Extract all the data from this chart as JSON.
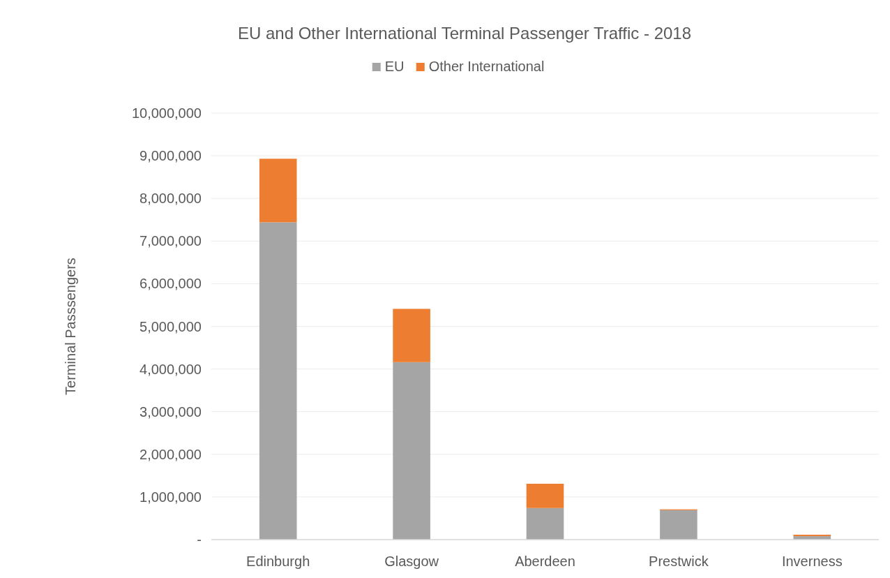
{
  "chart_data": {
    "type": "bar",
    "title": "EU and Other International Terminal Passenger Traffic - 2018",
    "ylabel": "Terminal Passsengers",
    "categories": [
      "Edinburgh",
      "Glasgow",
      "Aberdeen",
      "Prestwick",
      "Inverness"
    ],
    "stacked": true,
    "series": [
      {
        "name": "EU",
        "color": "#a5a5a5",
        "values": [
          7440000,
          4160000,
          740000,
          690000,
          80000
        ]
      },
      {
        "name": "Other International",
        "color": "#ed7d31",
        "values": [
          1490000,
          1250000,
          570000,
          20000,
          35000
        ]
      }
    ],
    "ylim": [
      0,
      10000000
    ],
    "yticks": [
      {
        "value": 0,
        "label": "-"
      },
      {
        "value": 1000000,
        "label": "1,000,000"
      },
      {
        "value": 2000000,
        "label": "2,000,000"
      },
      {
        "value": 3000000,
        "label": "3,000,000"
      },
      {
        "value": 4000000,
        "label": "4,000,000"
      },
      {
        "value": 5000000,
        "label": "5,000,000"
      },
      {
        "value": 6000000,
        "label": "6,000,000"
      },
      {
        "value": 7000000,
        "label": "7,000,000"
      },
      {
        "value": 8000000,
        "label": "8,000,000"
      },
      {
        "value": 9000000,
        "label": "9,000,000"
      },
      {
        "value": 10000000,
        "label": "10,000,000"
      }
    ],
    "grid": "y",
    "legend": "top"
  }
}
